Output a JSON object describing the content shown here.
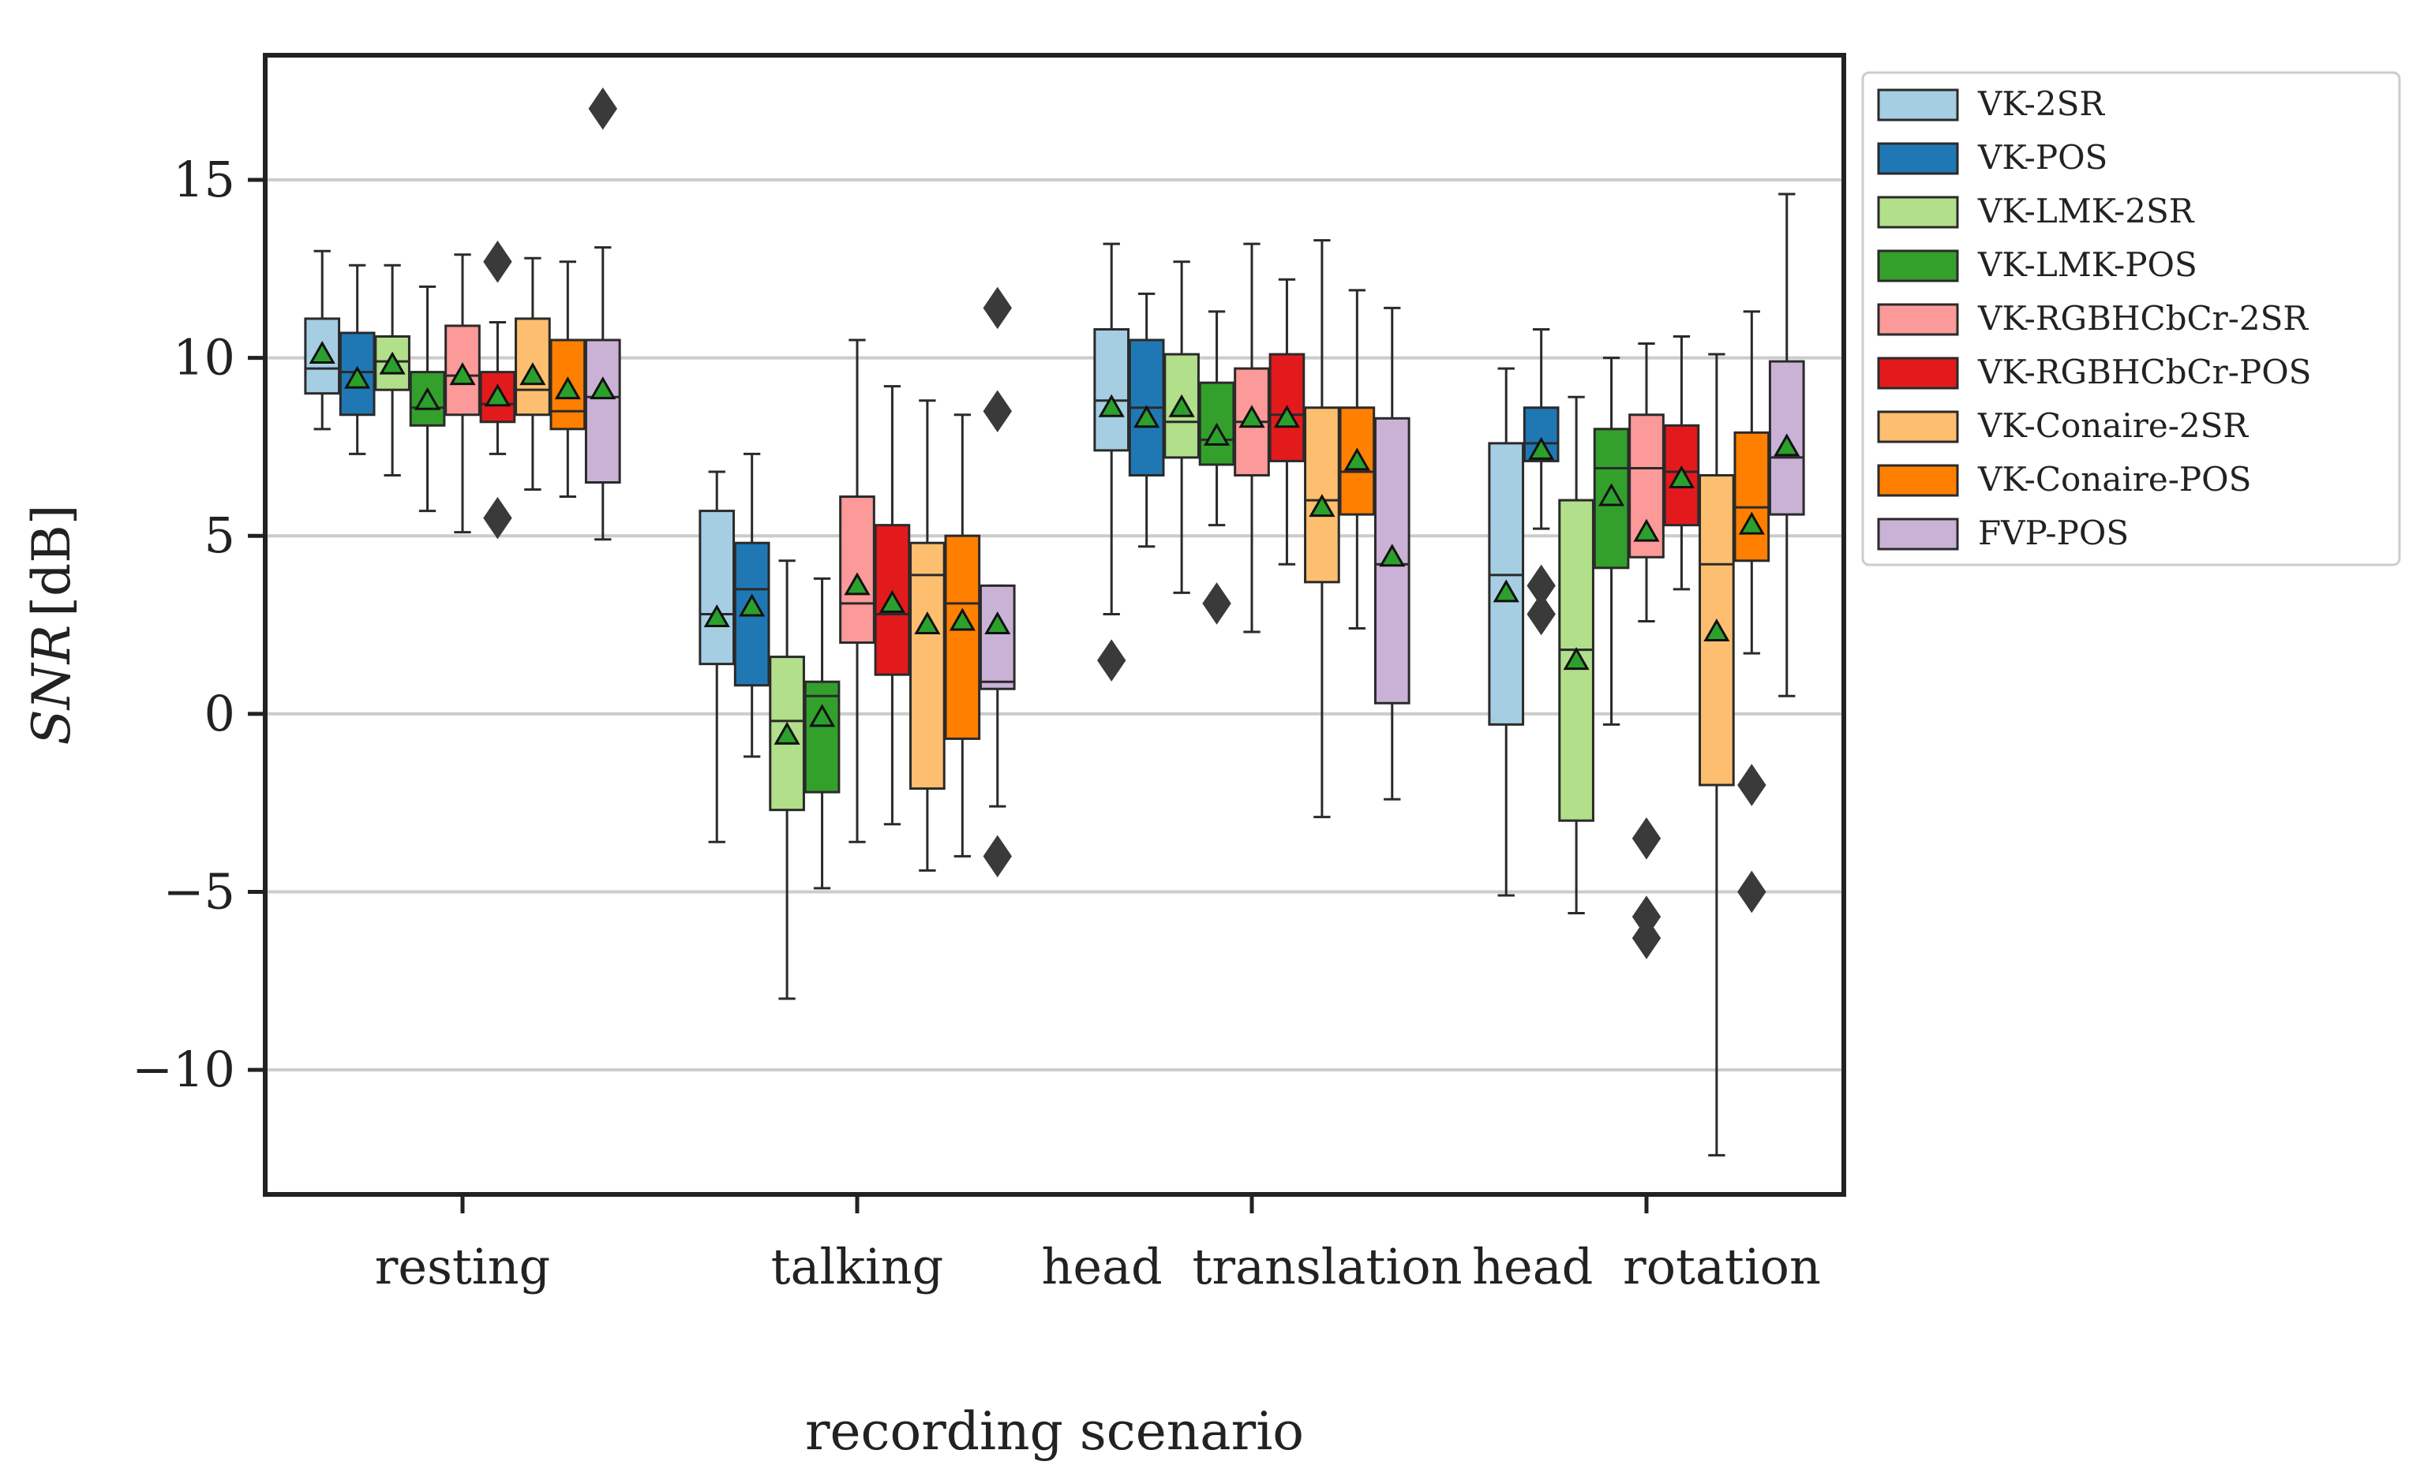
{
  "chart_data": {
    "type": "box",
    "xlabel": "recording scenario",
    "ylabel": {
      "italic": "SNR",
      "unit": "[dB]"
    },
    "ylim": [
      -13.5,
      18.5
    ],
    "yticks": [
      15,
      10,
      5,
      0,
      -5,
      -10
    ],
    "ytick_labels": [
      "15",
      "10",
      "5",
      "0",
      "−5",
      "−10"
    ],
    "grid": "horizontal",
    "legend_position": "outside-right",
    "categories": [
      "resting",
      "talking",
      "head translation",
      "head rotation"
    ],
    "series": [
      {
        "name": "VK-2SR",
        "color": "#a6cee3",
        "stats": [
          {
            "whislo": 8.0,
            "q1": 9.0,
            "med": 9.7,
            "q3": 11.1,
            "whishi": 13.0,
            "mean": 10.1,
            "fliers": []
          },
          {
            "whislo": -3.6,
            "q1": 1.4,
            "med": 2.8,
            "q3": 5.7,
            "whishi": 6.8,
            "mean": 2.7,
            "fliers": []
          },
          {
            "whislo": 2.8,
            "q1": 7.4,
            "med": 8.8,
            "q3": 10.8,
            "whishi": 13.2,
            "mean": 8.6,
            "fliers": [
              1.5
            ]
          },
          {
            "whislo": -5.1,
            "q1": -0.3,
            "med": 3.9,
            "q3": 7.6,
            "whishi": 9.7,
            "mean": 3.4,
            "fliers": []
          }
        ]
      },
      {
        "name": "VK-POS",
        "color": "#1f78b4",
        "stats": [
          {
            "whislo": 7.3,
            "q1": 8.4,
            "med": 9.6,
            "q3": 10.7,
            "whishi": 12.6,
            "mean": 9.4,
            "fliers": []
          },
          {
            "whislo": -1.2,
            "q1": 0.8,
            "med": 3.5,
            "q3": 4.8,
            "whishi": 7.3,
            "mean": 3.0,
            "fliers": []
          },
          {
            "whislo": 4.7,
            "q1": 6.7,
            "med": 8.6,
            "q3": 10.5,
            "whishi": 11.8,
            "mean": 8.3,
            "fliers": []
          },
          {
            "whislo": 5.2,
            "q1": 7.1,
            "med": 7.6,
            "q3": 8.6,
            "whishi": 10.8,
            "mean": 7.4,
            "fliers": [
              3.6,
              2.8
            ]
          }
        ]
      },
      {
        "name": "VK-LMK-2SR",
        "color": "#b2df8a",
        "stats": [
          {
            "whislo": 6.7,
            "q1": 9.1,
            "med": 9.9,
            "q3": 10.6,
            "whishi": 12.6,
            "mean": 9.8,
            "fliers": []
          },
          {
            "whislo": -8.0,
            "q1": -2.7,
            "med": -0.2,
            "q3": 1.6,
            "whishi": 4.3,
            "mean": -0.6,
            "fliers": []
          },
          {
            "whislo": 3.4,
            "q1": 7.2,
            "med": 8.2,
            "q3": 10.1,
            "whishi": 12.7,
            "mean": 8.6,
            "fliers": []
          },
          {
            "whislo": -5.6,
            "q1": -3.0,
            "med": 1.8,
            "q3": 6.0,
            "whishi": 8.9,
            "mean": 1.5,
            "fliers": []
          }
        ]
      },
      {
        "name": "VK-LMK-POS",
        "color": "#33a02c",
        "stats": [
          {
            "whislo": 5.7,
            "q1": 8.1,
            "med": 8.6,
            "q3": 9.6,
            "whishi": 12.0,
            "mean": 8.8,
            "fliers": []
          },
          {
            "whislo": -4.9,
            "q1": -2.2,
            "med": 0.5,
            "q3": 0.9,
            "whishi": 3.8,
            "mean": -0.1,
            "fliers": []
          },
          {
            "whislo": 5.3,
            "q1": 7.0,
            "med": 7.7,
            "q3": 9.3,
            "whishi": 11.3,
            "mean": 7.8,
            "fliers": [
              3.1
            ]
          },
          {
            "whislo": -0.3,
            "q1": 4.1,
            "med": 6.9,
            "q3": 8.0,
            "whishi": 10.0,
            "mean": 6.1,
            "fliers": []
          }
        ]
      },
      {
        "name": "VK-RGBHCbCr-2SR",
        "color": "#fb9a99",
        "stats": [
          {
            "whislo": 5.1,
            "q1": 8.4,
            "med": 9.5,
            "q3": 10.9,
            "whishi": 12.9,
            "mean": 9.5,
            "fliers": []
          },
          {
            "whislo": -3.6,
            "q1": 2.0,
            "med": 3.1,
            "q3": 6.1,
            "whishi": 10.5,
            "mean": 3.6,
            "fliers": []
          },
          {
            "whislo": 2.3,
            "q1": 6.7,
            "med": 8.2,
            "q3": 9.7,
            "whishi": 13.2,
            "mean": 8.3,
            "fliers": []
          },
          {
            "whislo": 2.6,
            "q1": 4.4,
            "med": 6.9,
            "q3": 8.4,
            "whishi": 10.4,
            "mean": 5.1,
            "fliers": [
              -3.5,
              -5.7,
              -6.3
            ]
          }
        ]
      },
      {
        "name": "VK-RGBHCbCr-POS",
        "color": "#e31a1c",
        "stats": [
          {
            "whislo": 7.3,
            "q1": 8.2,
            "med": 8.7,
            "q3": 9.6,
            "whishi": 11.0,
            "mean": 8.9,
            "fliers": [
              12.7,
              5.5
            ]
          },
          {
            "whislo": -3.1,
            "q1": 1.1,
            "med": 2.8,
            "q3": 5.3,
            "whishi": 9.2,
            "mean": 3.1,
            "fliers": []
          },
          {
            "whislo": 4.2,
            "q1": 7.1,
            "med": 8.4,
            "q3": 10.1,
            "whishi": 12.2,
            "mean": 8.3,
            "fliers": []
          },
          {
            "whislo": 3.5,
            "q1": 5.3,
            "med": 6.8,
            "q3": 8.1,
            "whishi": 10.6,
            "mean": 6.6,
            "fliers": []
          }
        ]
      },
      {
        "name": "VK-Conaire-2SR",
        "color": "#fdbf6f",
        "stats": [
          {
            "whislo": 6.3,
            "q1": 8.4,
            "med": 9.1,
            "q3": 11.1,
            "whishi": 12.8,
            "mean": 9.5,
            "fliers": []
          },
          {
            "whislo": -4.4,
            "q1": -2.1,
            "med": 3.9,
            "q3": 4.8,
            "whishi": 8.8,
            "mean": 2.5,
            "fliers": []
          },
          {
            "whislo": -2.9,
            "q1": 3.7,
            "med": 6.0,
            "q3": 8.6,
            "whishi": 13.3,
            "mean": 5.8,
            "fliers": []
          },
          {
            "whislo": -12.4,
            "q1": -2.0,
            "med": 4.2,
            "q3": 6.7,
            "whishi": 10.1,
            "mean": 2.3,
            "fliers": []
          }
        ]
      },
      {
        "name": "VK-Conaire-POS",
        "color": "#ff7f00",
        "stats": [
          {
            "whislo": 6.1,
            "q1": 8.0,
            "med": 8.5,
            "q3": 10.5,
            "whishi": 12.7,
            "mean": 9.1,
            "fliers": []
          },
          {
            "whislo": -4.0,
            "q1": -0.7,
            "med": 3.1,
            "q3": 5.0,
            "whishi": 8.4,
            "mean": 2.6,
            "fliers": []
          },
          {
            "whislo": 2.4,
            "q1": 5.6,
            "med": 6.8,
            "q3": 8.6,
            "whishi": 11.9,
            "mean": 7.1,
            "fliers": []
          },
          {
            "whislo": 1.7,
            "q1": 4.3,
            "med": 5.8,
            "q3": 7.9,
            "whishi": 11.3,
            "mean": 5.3,
            "fliers": [
              -2.0,
              -5.0
            ]
          }
        ]
      },
      {
        "name": "FVP-POS",
        "color": "#cab2d6",
        "stats": [
          {
            "whislo": 4.9,
            "q1": 6.5,
            "med": 8.9,
            "q3": 10.5,
            "whishi": 13.1,
            "mean": 9.1,
            "fliers": [
              17.0
            ]
          },
          {
            "whislo": -2.6,
            "q1": 0.7,
            "med": 0.9,
            "q3": 3.6,
            "whishi": 3.6,
            "mean": 2.5,
            "fliers": [
              11.4,
              8.5,
              -4.0
            ]
          },
          {
            "whislo": -2.4,
            "q1": 0.3,
            "med": 4.2,
            "q3": 8.3,
            "whishi": 11.4,
            "mean": 4.4,
            "fliers": []
          },
          {
            "whislo": 0.5,
            "q1": 5.6,
            "med": 7.2,
            "q3": 9.9,
            "whishi": 14.6,
            "mean": 7.5,
            "fliers": []
          }
        ]
      }
    ]
  }
}
